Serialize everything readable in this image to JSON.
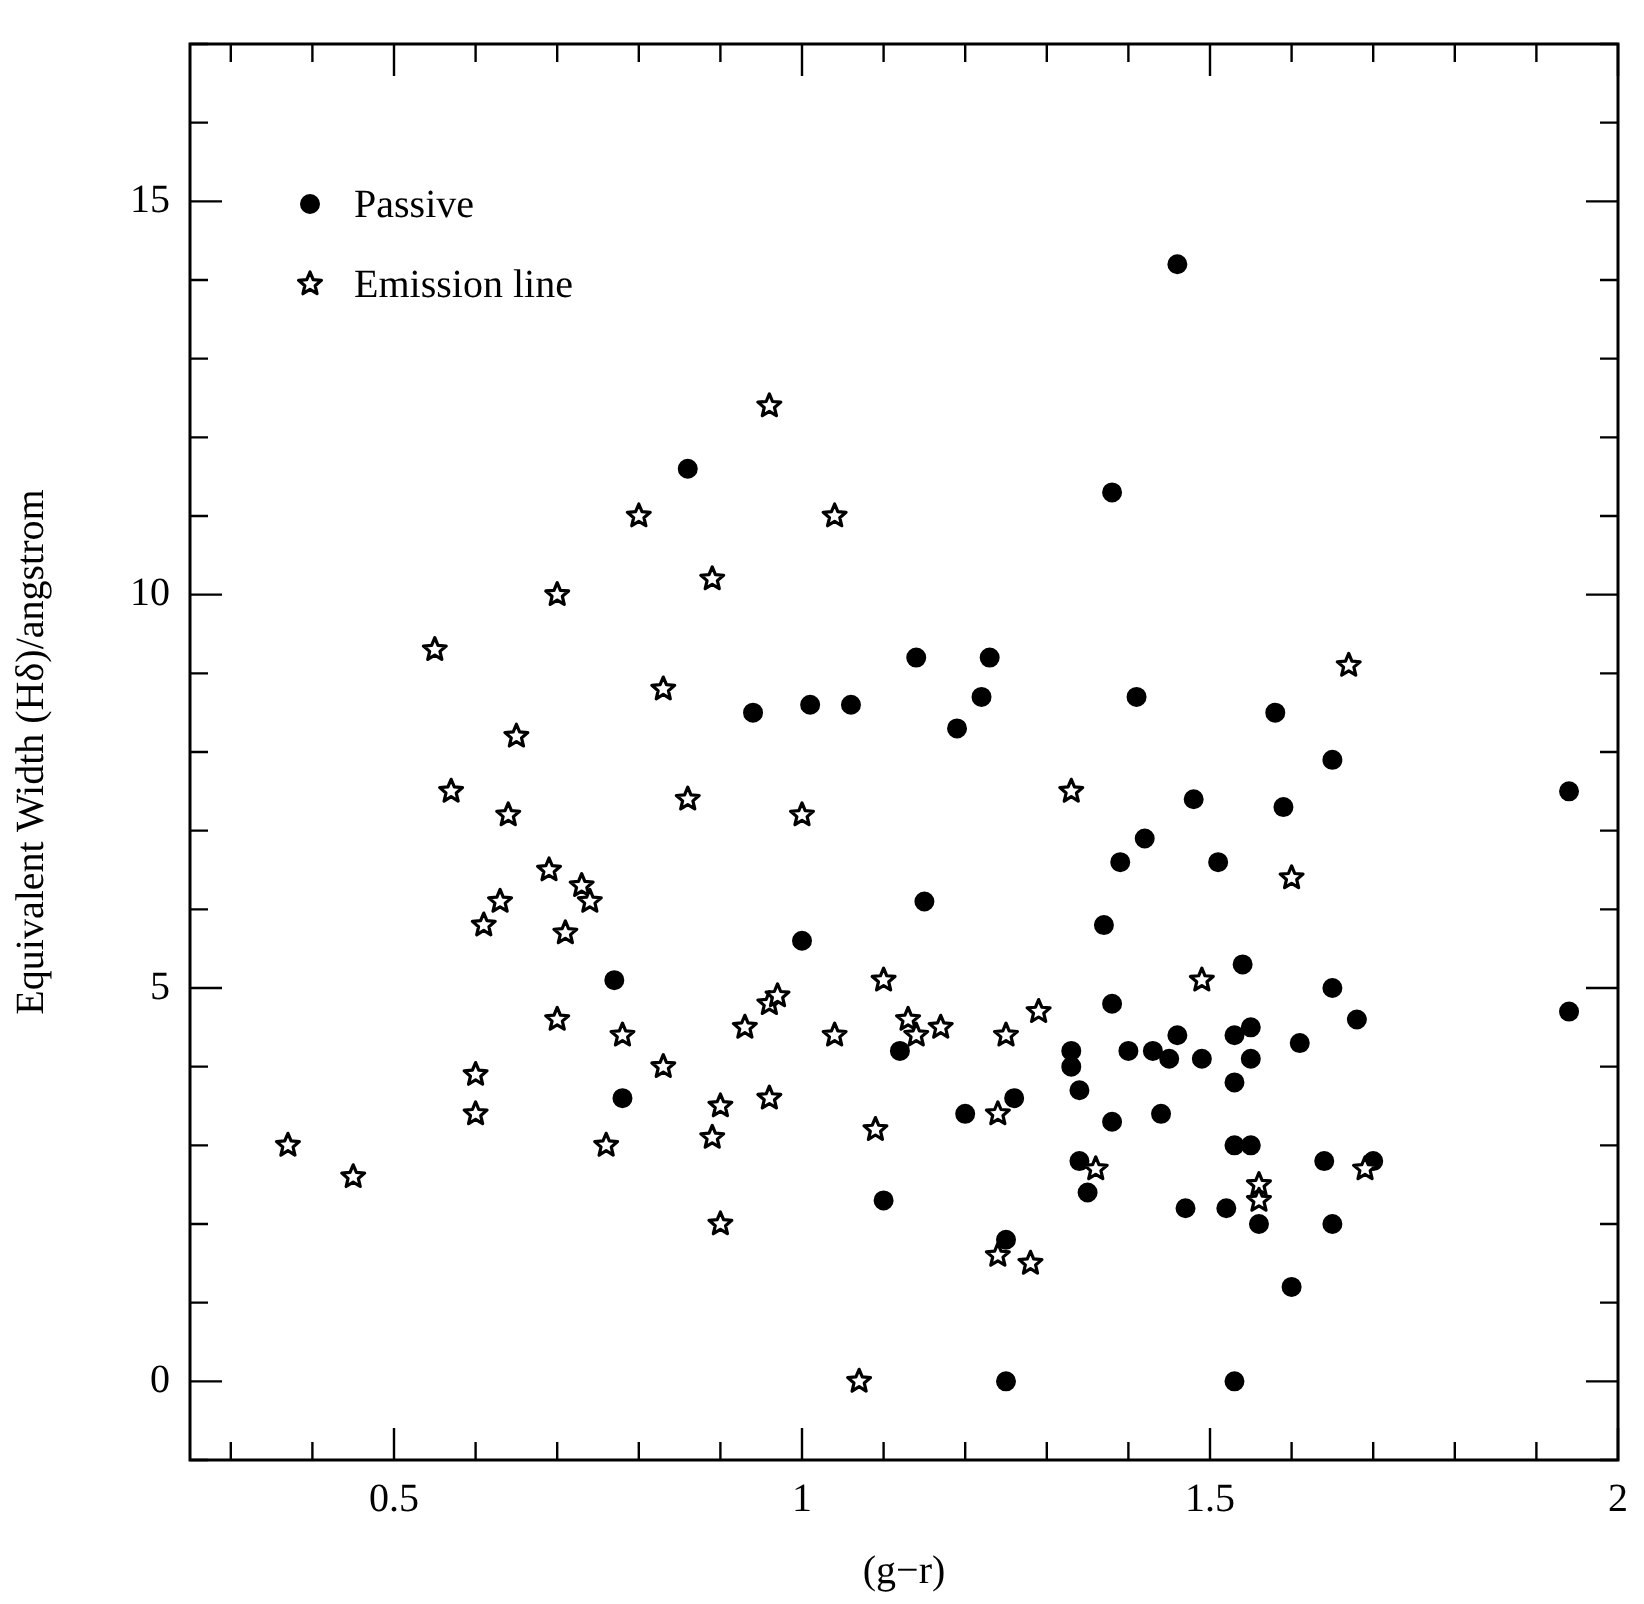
{
  "chart_data": {
    "type": "scatter",
    "xlabel": "(g−r)",
    "ylabel": "Equivalent Width (Hδ)/angstrom",
    "legend": "top left",
    "xlim": [
      0.25,
      2.0
    ],
    "ylim": [
      -1,
      17
    ],
    "xticks": [
      {
        "value": 0.3,
        "label": null
      },
      {
        "value": 0.4,
        "label": null
      },
      0.5,
      {
        "value": 0.6,
        "label": null
      },
      {
        "value": 0.7,
        "label": null
      },
      {
        "value": 0.8,
        "label": null
      },
      {
        "value": 0.9,
        "label": null
      },
      1,
      {
        "value": 1.1,
        "label": null
      },
      {
        "value": 1.2,
        "label": null
      },
      {
        "value": 1.3,
        "label": null
      },
      {
        "value": 1.4,
        "label": null
      },
      1.5,
      {
        "value": 1.6,
        "label": null
      },
      {
        "value": 1.7,
        "label": null
      },
      {
        "value": 1.8,
        "label": null
      },
      {
        "value": 1.9,
        "label": null
      },
      2
    ],
    "yticks": [
      {
        "value": -1,
        "label": null
      },
      0,
      {
        "value": 1,
        "label": null
      },
      {
        "value": 2,
        "label": null
      },
      {
        "value": 3,
        "label": null
      },
      {
        "value": 4,
        "label": null
      },
      5,
      {
        "value": 6,
        "label": null
      },
      {
        "value": 7,
        "label": null
      },
      {
        "value": 8,
        "label": null
      },
      {
        "value": 9,
        "label": null
      },
      10,
      {
        "value": 11,
        "label": null
      },
      {
        "value": 12,
        "label": null
      },
      {
        "value": 13,
        "label": null
      },
      {
        "value": 14,
        "label": null
      },
      15,
      {
        "value": 16,
        "label": null
      },
      {
        "value": 17,
        "label": null
      }
    ],
    "series": [
      {
        "name": "Passive",
        "color": "#000000",
        "marker": "circle",
        "x": [
          0.77,
          0.78,
          1.0,
          1.1,
          1.12,
          0.86,
          0.94,
          1.01,
          1.06,
          1.14,
          1.46,
          1.38,
          1.23,
          1.22,
          1.19,
          1.41,
          1.58,
          1.65,
          1.94,
          1.48,
          1.59,
          1.42,
          1.39,
          1.51,
          1.15,
          1.37,
          1.54,
          1.65,
          1.94,
          1.68,
          1.38,
          1.46,
          1.53,
          1.55,
          1.61,
          1.33,
          1.33,
          1.4,
          1.43,
          1.45,
          1.49,
          1.55,
          1.53,
          1.34,
          1.26,
          1.2,
          1.38,
          1.44,
          1.53,
          1.55,
          1.34,
          1.64,
          1.7,
          1.35,
          1.47,
          1.52,
          1.56,
          1.65,
          1.25,
          1.6,
          1.25,
          1.53
        ],
        "values": [
          5.1,
          3.6,
          5.6,
          2.3,
          4.2,
          11.6,
          8.5,
          8.6,
          8.6,
          9.2,
          14.2,
          11.3,
          9.2,
          8.7,
          8.3,
          8.7,
          8.5,
          7.9,
          7.5,
          7.4,
          7.3,
          6.9,
          6.6,
          6.6,
          6.1,
          5.8,
          5.3,
          5.0,
          4.7,
          4.6,
          4.8,
          4.4,
          4.4,
          4.5,
          4.3,
          4.2,
          4.0,
          4.2,
          4.2,
          4.1,
          4.1,
          4.1,
          3.8,
          3.7,
          3.6,
          3.4,
          3.3,
          3.4,
          3.0,
          3.0,
          2.8,
          2.8,
          2.8,
          2.4,
          2.2,
          2.2,
          2.0,
          2.0,
          1.8,
          1.2,
          0.0,
          0.0
        ]
      },
      {
        "name": "Emission line",
        "color": "#000000",
        "marker": "star",
        "x": [
          0.37,
          0.45,
          0.57,
          0.64,
          0.65,
          0.69,
          0.73,
          0.74,
          0.63,
          0.61,
          0.71,
          0.86,
          1.0,
          0.7,
          0.6,
          0.6,
          0.76,
          0.78,
          0.83,
          0.9,
          0.89,
          0.9,
          0.93,
          0.96,
          0.97,
          0.96,
          1.04,
          1.1,
          1.07,
          1.09,
          1.13,
          1.14,
          1.17,
          0.55,
          0.7,
          0.8,
          0.83,
          0.89,
          0.96,
          1.04,
          1.67,
          1.33,
          1.6,
          1.49,
          1.29,
          1.25,
          1.24,
          1.36,
          1.56,
          1.56,
          1.69,
          1.24,
          1.28
        ],
        "values": [
          3.0,
          2.6,
          7.5,
          7.2,
          8.2,
          6.5,
          6.3,
          6.1,
          6.1,
          5.8,
          5.7,
          7.4,
          7.2,
          4.6,
          3.9,
          3.4,
          3.0,
          4.4,
          4.0,
          3.5,
          3.1,
          2.0,
          4.5,
          4.8,
          4.9,
          3.6,
          4.4,
          5.1,
          0.0,
          3.2,
          4.6,
          4.4,
          4.5,
          9.3,
          10.0,
          11.0,
          8.8,
          10.2,
          12.4,
          11.0,
          9.1,
          7.5,
          6.4,
          5.1,
          4.7,
          4.4,
          3.4,
          2.7,
          2.5,
          2.3,
          2.7,
          1.6,
          1.5
        ]
      }
    ]
  }
}
